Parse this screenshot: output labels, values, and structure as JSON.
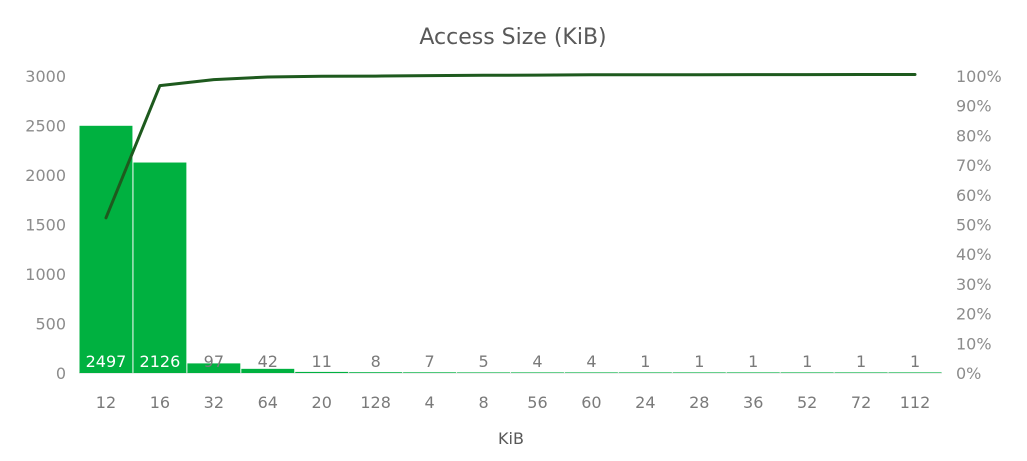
{
  "chart_data": {
    "type": "bar",
    "title": "Access Size (KiB)",
    "xlabel": "KiB",
    "ylabel": "",
    "categories": [
      "12",
      "16",
      "32",
      "64",
      "20",
      "128",
      "4",
      "8",
      "56",
      "60",
      "24",
      "28",
      "36",
      "52",
      "72",
      "112"
    ],
    "series": [
      {
        "type": "bar",
        "axis": "left",
        "color": "#00b140",
        "values": [
          2497,
          2126,
          97,
          42,
          11,
          8,
          7,
          5,
          4,
          4,
          1,
          1,
          1,
          1,
          1,
          1
        ],
        "data_labels": [
          "2497",
          "2126",
          "97",
          "42",
          "11",
          "8",
          "7",
          "5",
          "4",
          "4",
          "1",
          "1",
          "1",
          "1",
          "1",
          "1"
        ]
      },
      {
        "type": "line",
        "axis": "right",
        "color": "#1e5a1e",
        "values": [
          0.5227,
          0.9677,
          0.988,
          0.9968,
          0.9991,
          0.9998,
          1.0012,
          1.0023,
          1.0031,
          1.004,
          1.0042,
          1.0044,
          1.0046,
          1.0048,
          1.005,
          1.0052
        ]
      }
    ],
    "ylim_left": [
      0,
      3000
    ],
    "yticks_left": [
      "0",
      "500",
      "1000",
      "1500",
      "2000",
      "2500",
      "3000"
    ],
    "ylim_right": [
      0,
      1
    ],
    "yticks_right": [
      "0%",
      "10%",
      "20%",
      "30%",
      "40%",
      "50%",
      "60%",
      "70%",
      "80%",
      "90%",
      "100%"
    ],
    "grid": false,
    "legend": "none"
  }
}
